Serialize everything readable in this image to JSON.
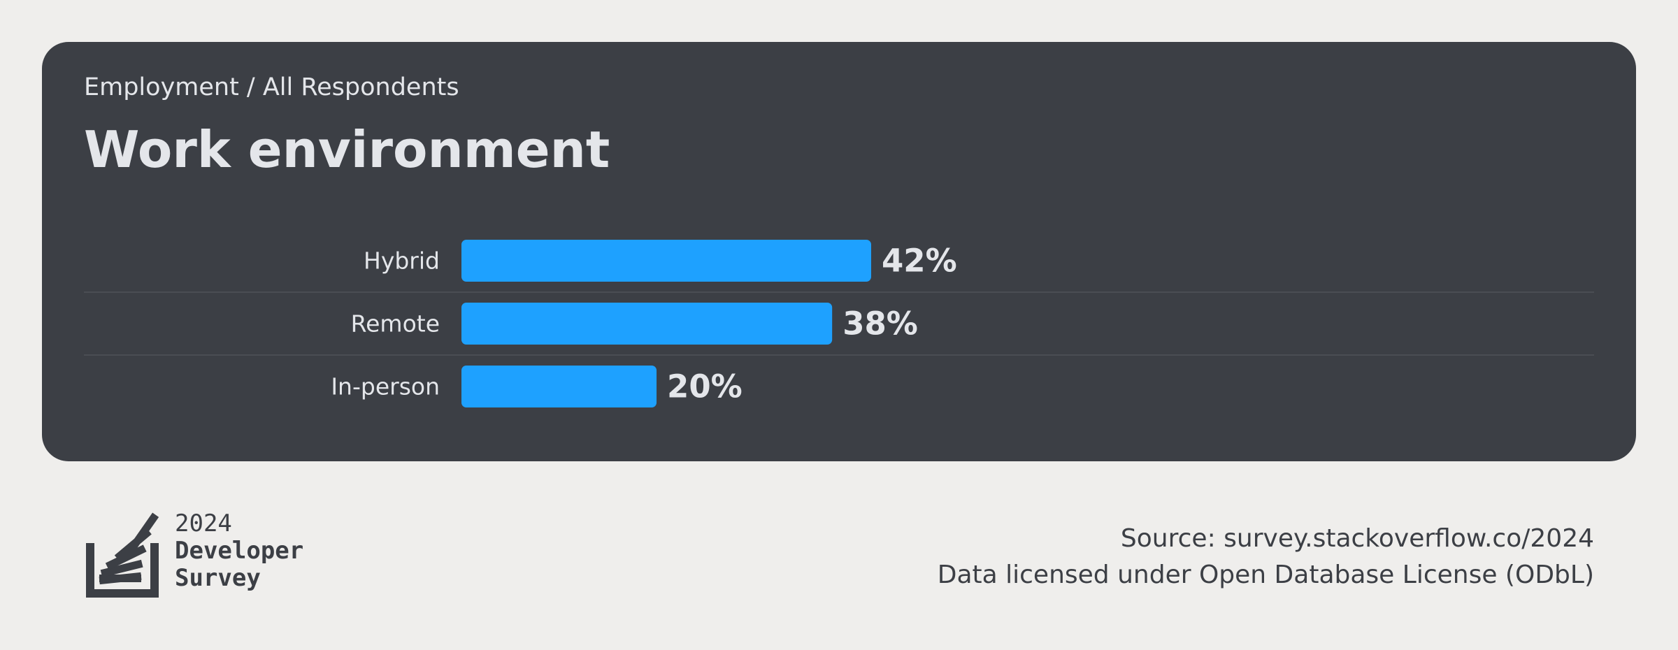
{
  "header": {
    "breadcrumb": "Employment / All Respondents",
    "title": "Work environment"
  },
  "chart_data": {
    "type": "bar",
    "orientation": "horizontal",
    "title": "Work environment",
    "categories": [
      "Hybrid",
      "Remote",
      "In-person"
    ],
    "values": [
      42,
      38,
      20
    ],
    "value_labels": [
      "42%",
      "38%",
      "20%"
    ],
    "xlim": [
      0,
      100
    ],
    "unit": "%",
    "grid": false,
    "legend": "none",
    "bar_color": "#1ea1ff"
  },
  "footer": {
    "logo_year": "2024",
    "logo_line1": "Developer",
    "logo_line2": "Survey",
    "source": "Source: survey.stackoverflow.co/2024",
    "license": "Data licensed under Open Database License (ODbL)"
  },
  "colors": {
    "page_background": "#efeeec",
    "card_background": "#3c3f45",
    "text_light": "#e4e6ea",
    "text_dark": "#3c3f45",
    "bar": "#1ea1ff"
  }
}
